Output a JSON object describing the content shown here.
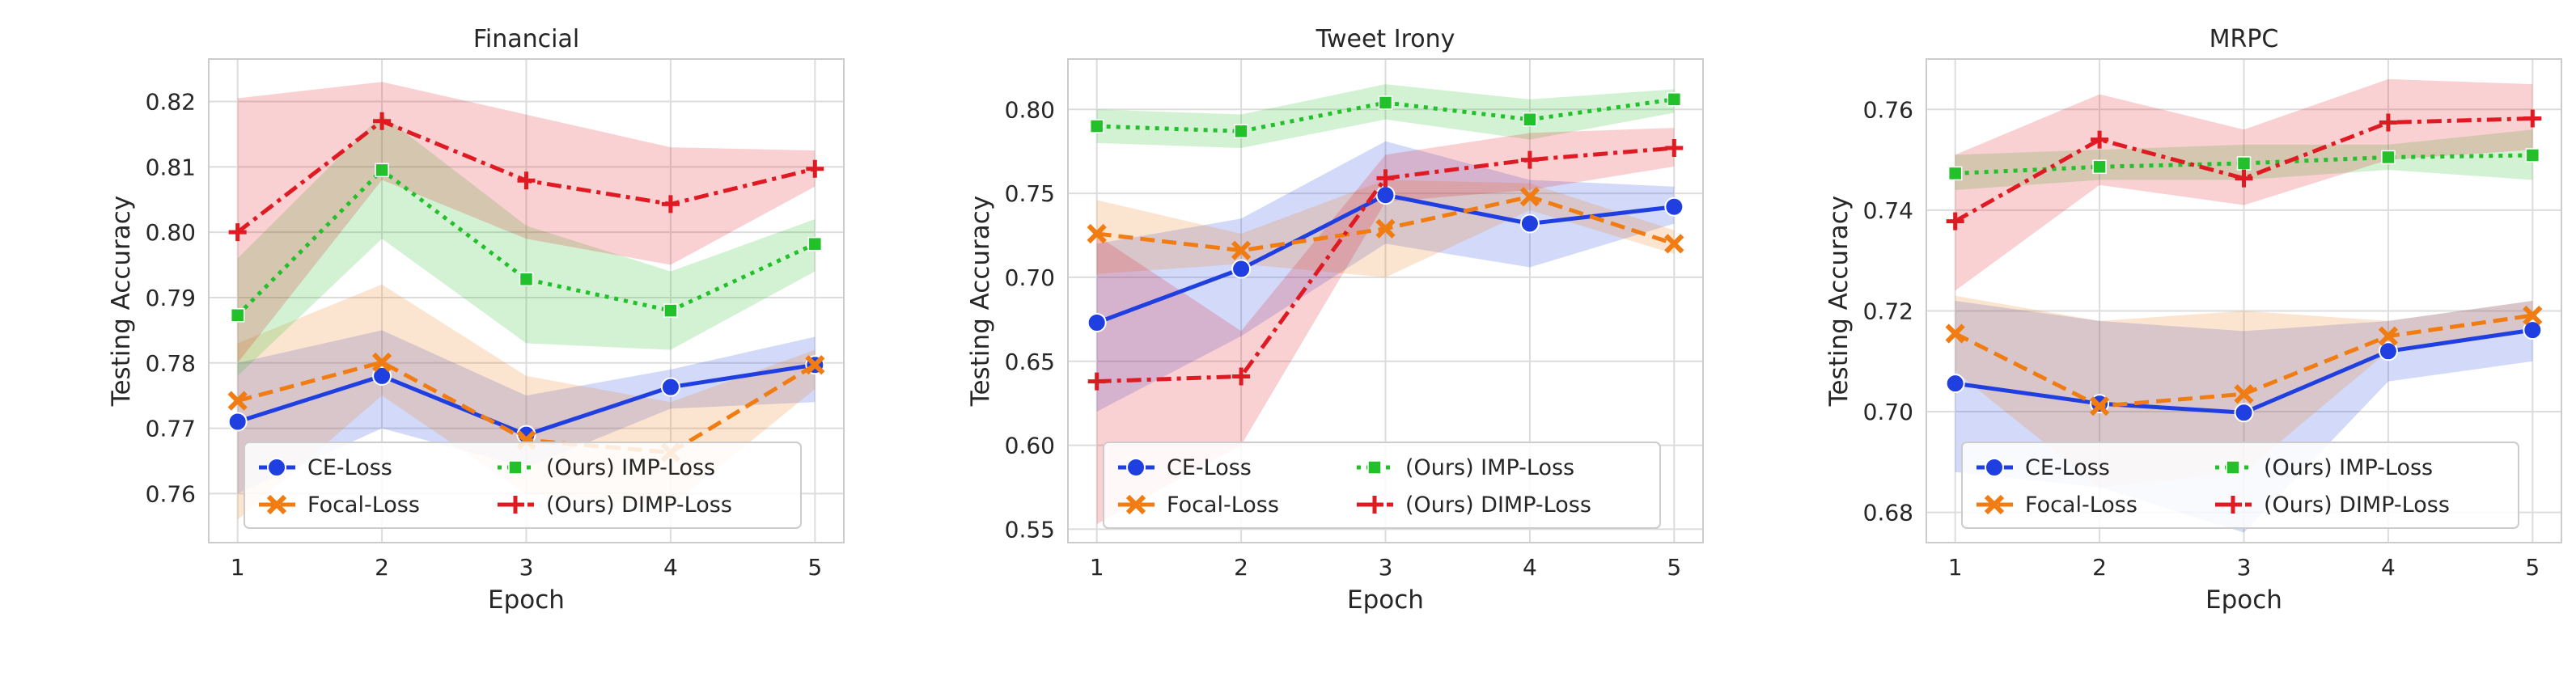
{
  "chart_data": [
    {
      "type": "line",
      "title": "Financial",
      "xlabel": "Epoch",
      "ylabel": "Testing Accuracy",
      "x": [
        1,
        2,
        3,
        4,
        5
      ],
      "xlim": [
        0.8,
        5.2
      ],
      "ylim": [
        0.7525,
        0.8265
      ],
      "yticks": [
        0.76,
        0.77,
        0.78,
        0.79,
        0.8,
        0.81,
        0.82
      ],
      "ytick_labels": [
        "0.76",
        "0.77",
        "0.78",
        "0.79",
        "0.80",
        "0.81",
        "0.82"
      ],
      "grid": true,
      "legend": "lower-center, 2 columns",
      "series": [
        {
          "name": "CE-Loss",
          "color": "#1f3fe0",
          "marker": "circle",
          "line": "solid",
          "values": [
            0.771,
            0.778,
            0.769,
            0.7763,
            0.7797
          ],
          "band_low": [
            0.76,
            0.77,
            0.764,
            0.773,
            0.774
          ],
          "band_high": [
            0.78,
            0.785,
            0.775,
            0.779,
            0.784
          ]
        },
        {
          "name": "Focal-Loss",
          "color": "#f07c12",
          "marker": "x",
          "line": "dashed",
          "values": [
            0.7742,
            0.7801,
            0.7682,
            0.7663,
            0.7797
          ],
          "band_low": [
            0.756,
            0.775,
            0.76,
            0.758,
            0.776
          ],
          "band_high": [
            0.783,
            0.792,
            0.778,
            0.774,
            0.782
          ]
        },
        {
          "name": "(Ours) IMP-Loss",
          "color": "#22c02a",
          "marker": "square",
          "line": "dotted",
          "values": [
            0.7873,
            0.8095,
            0.7928,
            0.788,
            0.7982
          ],
          "band_low": [
            0.778,
            0.799,
            0.783,
            0.782,
            0.794
          ],
          "band_high": [
            0.796,
            0.818,
            0.801,
            0.794,
            0.802
          ]
        },
        {
          "name": "(Ours) DIMP-Loss",
          "color": "#e01a22",
          "marker": "plus",
          "line": "dashdot",
          "values": [
            0.8,
            0.817,
            0.8079,
            0.8043,
            0.8097
          ],
          "band_low": [
            0.78,
            0.808,
            0.799,
            0.795,
            0.807
          ],
          "band_high": [
            0.8205,
            0.823,
            0.818,
            0.813,
            0.8125
          ]
        }
      ]
    },
    {
      "type": "line",
      "title": "Tweet Irony",
      "xlabel": "Epoch",
      "ylabel": "Testing Accuracy",
      "x": [
        1,
        2,
        3,
        4,
        5
      ],
      "xlim": [
        0.8,
        5.2
      ],
      "ylim": [
        0.542,
        0.83
      ],
      "yticks": [
        0.55,
        0.6,
        0.65,
        0.7,
        0.75,
        0.8
      ],
      "ytick_labels": [
        "0.55",
        "0.60",
        "0.65",
        "0.70",
        "0.75",
        "0.80"
      ],
      "grid": true,
      "legend": "lower-center, 2 columns",
      "series": [
        {
          "name": "CE-Loss",
          "color": "#1f3fe0",
          "marker": "circle",
          "line": "solid",
          "values": [
            0.673,
            0.705,
            0.749,
            0.732,
            0.742
          ],
          "band_low": [
            0.62,
            0.665,
            0.72,
            0.706,
            0.732
          ],
          "band_high": [
            0.72,
            0.735,
            0.781,
            0.758,
            0.754
          ]
        },
        {
          "name": "Focal-Loss",
          "color": "#f07c12",
          "marker": "x",
          "line": "dashed",
          "values": [
            0.726,
            0.716,
            0.729,
            0.748,
            0.72
          ],
          "band_low": [
            0.702,
            0.708,
            0.7,
            0.74,
            0.714
          ],
          "band_high": [
            0.746,
            0.726,
            0.758,
            0.756,
            0.728
          ]
        },
        {
          "name": "(Ours) IMP-Loss",
          "color": "#22c02a",
          "marker": "square",
          "line": "dotted",
          "values": [
            0.79,
            0.787,
            0.804,
            0.794,
            0.806
          ],
          "band_low": [
            0.78,
            0.777,
            0.794,
            0.782,
            0.798
          ],
          "band_high": [
            0.8,
            0.797,
            0.815,
            0.806,
            0.812
          ]
        },
        {
          "name": "(Ours) DIMP-Loss",
          "color": "#e01a22",
          "marker": "plus",
          "line": "dashdot",
          "values": [
            0.638,
            0.641,
            0.759,
            0.77,
            0.777
          ],
          "band_low": [
            0.553,
            0.6,
            0.745,
            0.752,
            0.766
          ],
          "band_high": [
            0.725,
            0.668,
            0.773,
            0.786,
            0.789
          ]
        }
      ]
    },
    {
      "type": "line",
      "title": "MRPC",
      "xlabel": "Epoch",
      "ylabel": "Testing Accuracy",
      "x": [
        1,
        2,
        3,
        4,
        5
      ],
      "xlim": [
        0.8,
        5.2
      ],
      "ylim": [
        0.674,
        0.77
      ],
      "yticks": [
        0.68,
        0.7,
        0.72,
        0.74,
        0.76
      ],
      "ytick_labels": [
        "0.68",
        "0.70",
        "0.72",
        "0.74",
        "0.76"
      ],
      "grid": true,
      "legend": "lower-center, 2 columns",
      "series": [
        {
          "name": "CE-Loss",
          "color": "#1f3fe0",
          "marker": "circle",
          "line": "solid",
          "values": [
            0.7056,
            0.7016,
            0.6998,
            0.712,
            0.7162
          ],
          "band_low": [
            0.688,
            0.685,
            0.676,
            0.706,
            0.71
          ],
          "band_high": [
            0.722,
            0.718,
            0.716,
            0.718,
            0.722
          ]
        },
        {
          "name": "Focal-Loss",
          "color": "#f07c12",
          "marker": "x",
          "line": "dashed",
          "values": [
            0.7155,
            0.7011,
            0.7035,
            0.715,
            0.7191
          ],
          "band_low": [
            0.708,
            0.685,
            0.688,
            0.712,
            0.716
          ],
          "band_high": [
            0.723,
            0.718,
            0.72,
            0.718,
            0.722
          ]
        },
        {
          "name": "(Ours) IMP-Loss",
          "color": "#22c02a",
          "marker": "square",
          "line": "dotted",
          "values": [
            0.7473,
            0.7486,
            0.7493,
            0.7505,
            0.7509
          ],
          "band_low": [
            0.744,
            0.746,
            0.746,
            0.748,
            0.746
          ],
          "band_high": [
            0.751,
            0.752,
            0.753,
            0.753,
            0.756
          ]
        },
        {
          "name": "(Ours) DIMP-Loss",
          "color": "#e01a22",
          "marker": "plus",
          "line": "dashdot",
          "values": [
            0.7378,
            0.754,
            0.7463,
            0.7574,
            0.7582
          ],
          "band_low": [
            0.724,
            0.745,
            0.741,
            0.75,
            0.752
          ],
          "band_high": [
            0.751,
            0.763,
            0.756,
            0.766,
            0.765
          ]
        }
      ]
    }
  ]
}
